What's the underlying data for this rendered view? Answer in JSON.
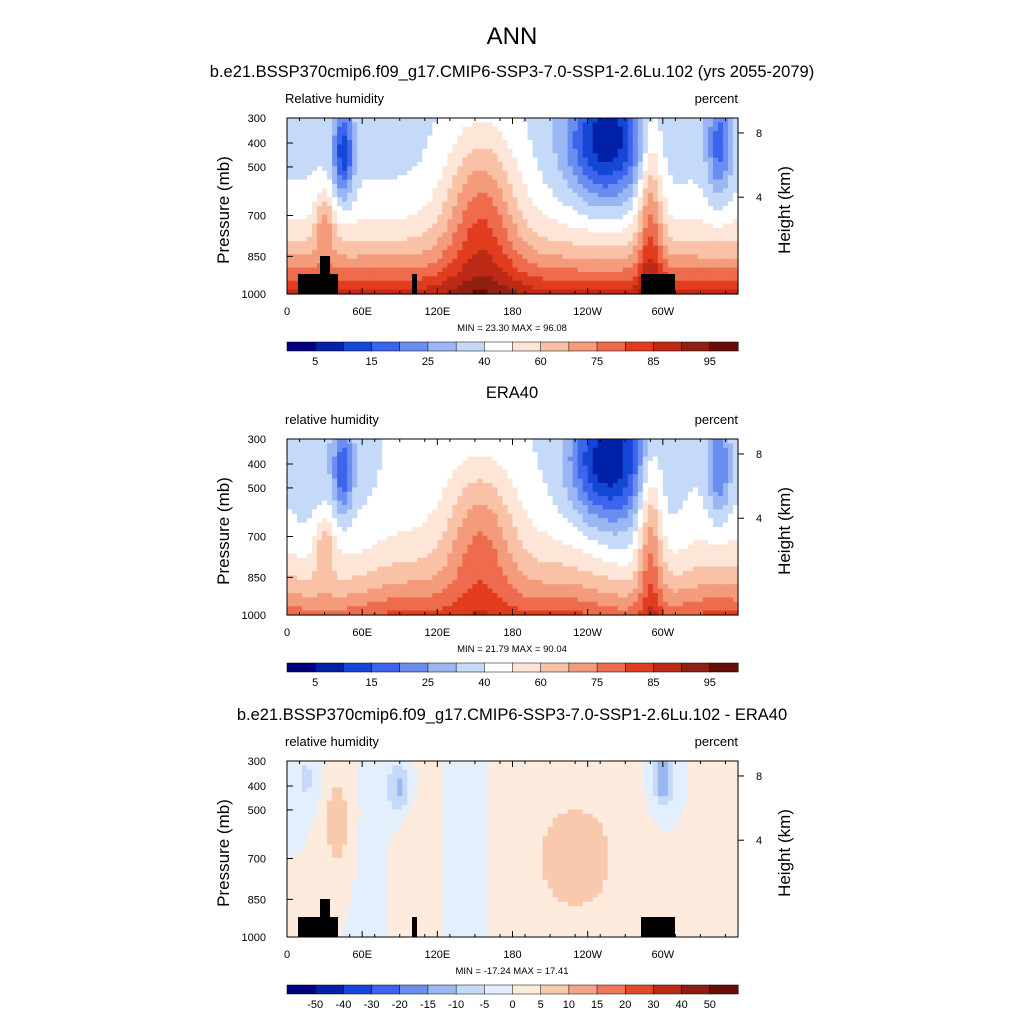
{
  "figure": {
    "title": "ANN"
  },
  "colors": {
    "abs_scale": [
      "#00007f",
      "#0020a8",
      "#1547d6",
      "#3c64ec",
      "#6a8ef0",
      "#9ab7f4",
      "#c5daf8",
      "#ffffff",
      "#fde5d8",
      "#f9c2a6",
      "#f49b7c",
      "#ee6b4d",
      "#e23c1e",
      "#bd2a16",
      "#902011",
      "#6a0c06"
    ],
    "diff_scale": [
      "#00007f",
      "#0020a8",
      "#1547d6",
      "#3c64ec",
      "#6a8ef0",
      "#9ab7f4",
      "#c5daf8",
      "#e3effc",
      "#fdecde",
      "#f9c9ae",
      "#f4a585",
      "#ee7858",
      "#e04a28",
      "#bb2b16",
      "#8c1d10",
      "#6a0c06"
    ],
    "topography": "#000000"
  },
  "chart_data": [
    {
      "type": "heatmap",
      "title": "b.e21.BSSP370cmip6.f09_g17.CMIP6-SSP3-7.0-SSP1-2.6Lu.102 (yrs 2055-2079)",
      "left_label": "Relative humidity",
      "right_label": "percent",
      "ylabel": "Pressure (mb)",
      "y2label": "Height (km)",
      "x_ticks": [
        "0",
        "60E",
        "120E",
        "180",
        "120W",
        "60W"
      ],
      "y_ticks": [
        "300",
        "400",
        "500",
        "700",
        "850",
        "1000"
      ],
      "y2_ticks": [
        "8",
        "4"
      ],
      "stats": "MIN =  23.30  MAX =  96.08",
      "colorbar_labels": [
        "5",
        "15",
        "25",
        "40",
        "60",
        "75",
        "85",
        "95"
      ],
      "xlim": [
        0,
        360
      ],
      "ylim": [
        1000,
        300
      ],
      "topography": true
    },
    {
      "type": "heatmap",
      "title": "ERA40",
      "left_label": "relative humidity",
      "right_label": "percent",
      "ylabel": "Pressure (mb)",
      "y2label": "Height (km)",
      "x_ticks": [
        "0",
        "60E",
        "120E",
        "180",
        "120W",
        "60W"
      ],
      "y_ticks": [
        "300",
        "400",
        "500",
        "700",
        "850",
        "1000"
      ],
      "y2_ticks": [
        "8",
        "4"
      ],
      "stats": "MIN =  21.79  MAX =  90.04",
      "colorbar_labels": [
        "5",
        "15",
        "25",
        "40",
        "60",
        "75",
        "85",
        "95"
      ],
      "xlim": [
        0,
        360
      ],
      "ylim": [
        1000,
        300
      ],
      "topography": false
    },
    {
      "type": "heatmap",
      "title": "b.e21.BSSP370cmip6.f09_g17.CMIP6-SSP3-7.0-SSP1-2.6Lu.102 - ERA40",
      "left_label": "relative humidity",
      "right_label": "percent",
      "ylabel": "Pressure (mb)",
      "y2label": "Height (km)",
      "x_ticks": [
        "0",
        "60E",
        "120E",
        "180",
        "120W",
        "60W"
      ],
      "y_ticks": [
        "300",
        "400",
        "500",
        "700",
        "850",
        "1000"
      ],
      "y2_ticks": [
        "8",
        "4"
      ],
      "stats": "MIN = -17.24  MAX =  17.41",
      "colorbar_labels": [
        "-50",
        "-40",
        "-30",
        "-20",
        "-15",
        "-10",
        "-5",
        "0",
        "5",
        "10",
        "15",
        "20",
        "30",
        "40",
        "50"
      ],
      "xlim": [
        0,
        360
      ],
      "ylim": [
        1000,
        300
      ],
      "topography": true
    }
  ]
}
